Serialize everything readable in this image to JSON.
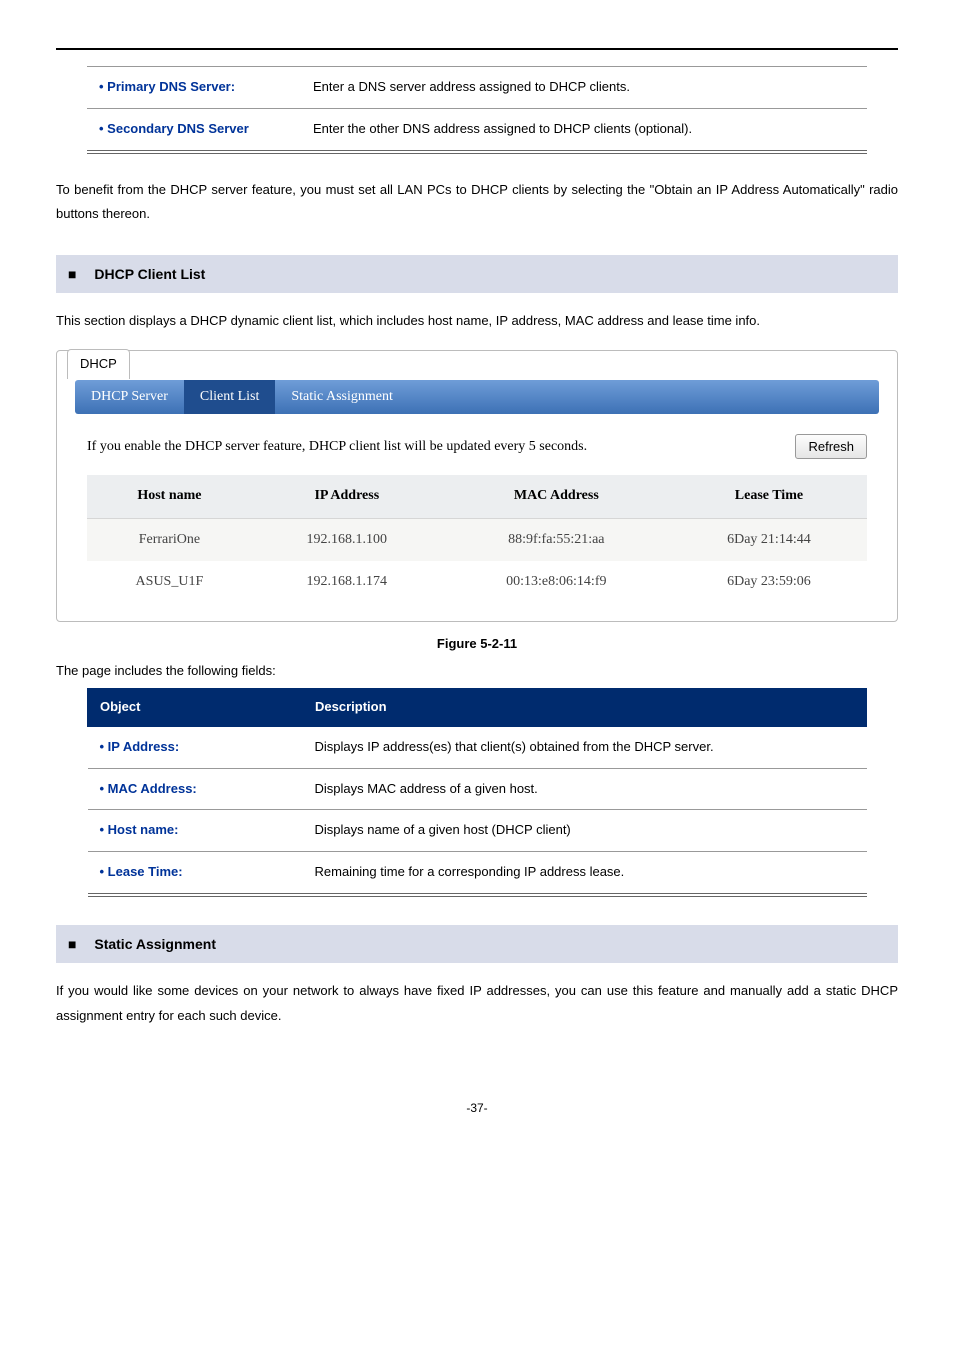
{
  "top_table": {
    "rows": [
      {
        "label": "Primary DNS Server:",
        "desc": "Enter a DNS server address assigned to DHCP clients."
      },
      {
        "label": "Secondary DNS Server",
        "desc": "Enter the other DNS address assigned to DHCP clients (optional)."
      }
    ]
  },
  "para1": "To benefit from the DHCP server feature, you must set all LAN PCs to DHCP clients by selecting the \"Obtain an IP Address Automatically\" radio buttons thereon.",
  "section_dhcp_client": "DHCP Client List",
  "para2": "This section displays a DHCP dynamic client list, which includes host name, IP address, MAC address and lease time info.",
  "dhcp_panel": {
    "panel_label": "DHCP",
    "tabs": [
      "DHCP Server",
      "Client List",
      "Static Assignment"
    ],
    "active_tab_index": 1,
    "note": "If you enable the DHCP server feature, DHCP client list will be updated every 5 seconds.",
    "refresh_label": "Refresh",
    "columns": [
      "Host name",
      "IP Address",
      "MAC Address",
      "Lease Time"
    ],
    "rows": [
      {
        "host": "FerrariOne",
        "ip": "192.168.1.100",
        "mac": "88:9f:fa:55:21:aa",
        "lease": "6Day 21:14:44"
      },
      {
        "host": "ASUS_U1F",
        "ip": "192.168.1.174",
        "mac": "00:13:e8:06:14:f9",
        "lease": "6Day 23:59:06"
      }
    ]
  },
  "figure_caption": "Figure 5-2-11",
  "fields_intro": "The page includes the following fields:",
  "fields_header": {
    "col1": "Object",
    "col2": "Description"
  },
  "fields": [
    {
      "label": "IP Address:",
      "desc": "Displays IP address(es) that client(s) obtained from the DHCP server."
    },
    {
      "label": "MAC Address:",
      "desc": "Displays MAC address of a given host."
    },
    {
      "label": "Host name:",
      "desc": "Displays name of a given host (DHCP client)"
    },
    {
      "label": "Lease Time:",
      "desc": "Remaining time for a corresponding IP address lease."
    }
  ],
  "section_static": "Static Assignment",
  "para3": "If you would like some devices on your network to always have fixed IP addresses, you can use this feature and manually add a static DHCP assignment entry for each such device.",
  "page_number": "-37-",
  "colors": {
    "section_bg": "#d8dce9",
    "tab_grad_top": "#6f9dd8",
    "tab_grad_bot": "#3d71b5",
    "tab_active": "#1f4d8e",
    "fields_header_bg": "#002b6e",
    "link_blue": "#003399"
  }
}
